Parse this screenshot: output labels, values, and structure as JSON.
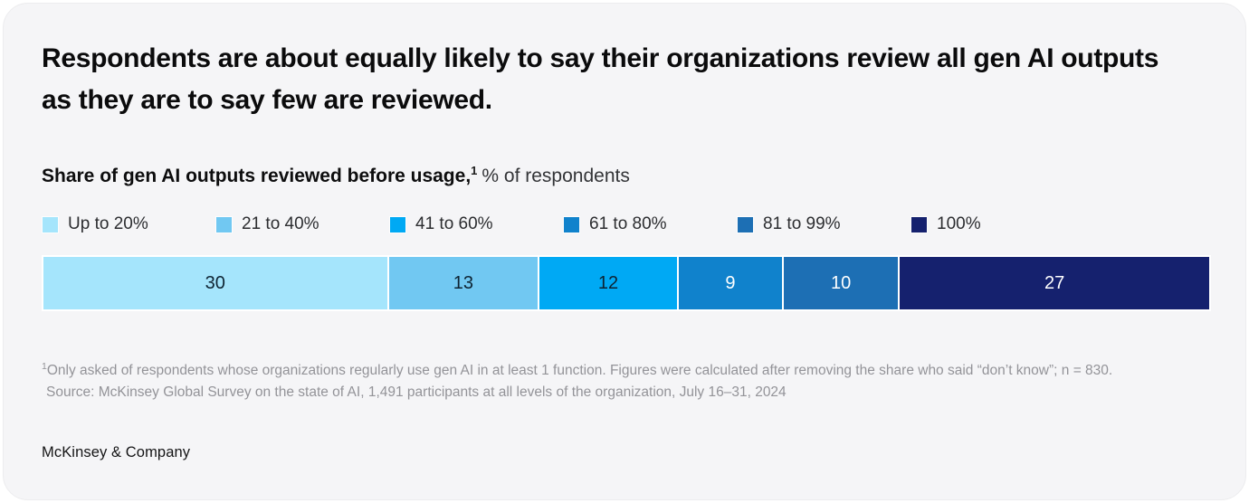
{
  "page": {
    "title": "Respondents are about equally likely to say their organizations review all gen AI outputs as they are to say few are reviewed.",
    "subtitle_bold": "Share of gen AI outputs reviewed before usage,",
    "subtitle_superscript": "1",
    "subtitle_regular": "% of respondents",
    "footnote_marker": "1",
    "footnote": "Only asked of respondents whose organizations regularly use gen AI in at least 1 function. Figures were calculated after removing the share who said “don’t know”; n = 830.",
    "source": "Source: McKinsey Global Survey on the state of AI, 1,491 participants at all levels of the organization, July 16–31, 2024",
    "brand": "McKinsey & Company"
  },
  "chart_data": {
    "type": "bar",
    "variant": "horizontal-stacked-single-bar",
    "title": "Share of gen AI outputs reviewed before usage, % of respondents",
    "categories": [
      "Up to 20%",
      "21 to 40%",
      "41 to 60%",
      "61 to 80%",
      "81 to 99%",
      "100%"
    ],
    "values": [
      30,
      13,
      12,
      9,
      10,
      27
    ],
    "colors": [
      "#A5E5FC",
      "#71C8F2",
      "#00A9F4",
      "#1082CC",
      "#1D6FB4",
      "#15216E"
    ],
    "value_label_colors": [
      "#0E2433",
      "#0E2433",
      "#0E2433",
      "#FFFFFF",
      "#FFFFFF",
      "#FFFFFF"
    ],
    "legend_position": "top",
    "axes": "none",
    "unit": "% of respondents",
    "total": 101
  }
}
